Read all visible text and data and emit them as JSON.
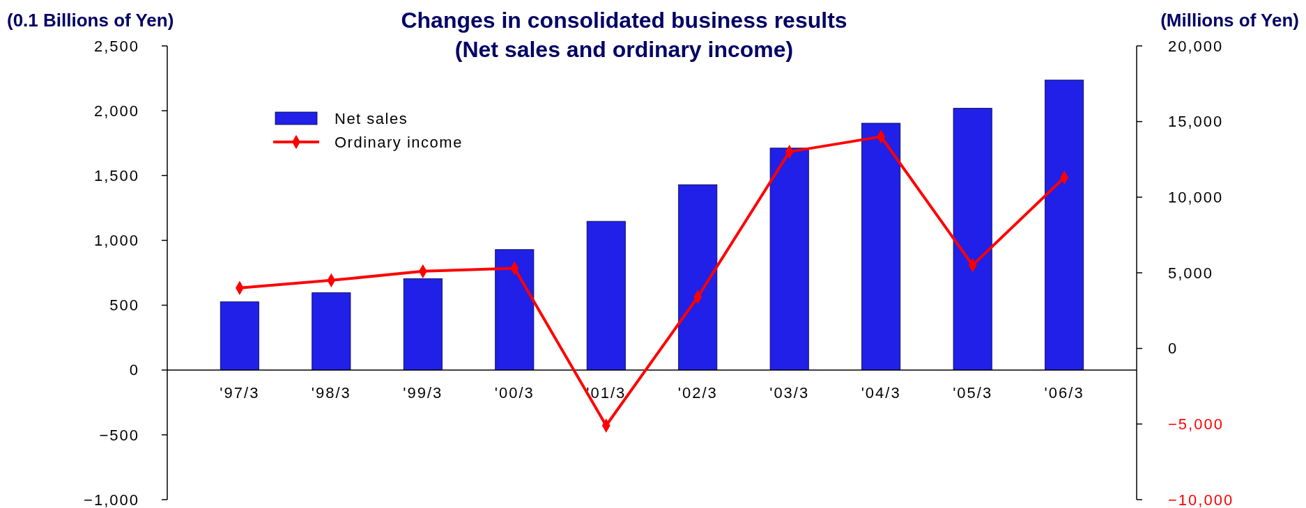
{
  "chart_data": {
    "type": "bar",
    "title": "Changes in consolidated business results\n(Net sales and ordinary income)",
    "ylabel": "(0.1 Billions of Yen)",
    "y2label": "(Millions of Yen)",
    "categories": [
      "'97/3",
      "'98/3",
      "'99/3",
      "'00/3",
      "'01/3",
      "'02/3",
      "'03/3",
      "'04/3",
      "'05/3",
      "'06/3"
    ],
    "series": [
      {
        "name": "Net sales",
        "color": "#2020e8",
        "values": [
          526,
          596,
          705,
          929,
          1147,
          1429,
          1712,
          1904,
          2019,
          2237
        ]
      },
      {
        "name": "Ordinary income",
        "type": "line",
        "axis": "y2",
        "color": "#ff0000",
        "marker": "diamond",
        "values": [
          4000,
          4500,
          5100,
          5300,
          -5100,
          3400,
          13000,
          14000,
          5500,
          11300
        ]
      }
    ],
    "ylim": [
      -1000,
      2500
    ],
    "yticks": [
      {
        "value": -1000,
        "label": "−1,000"
      },
      {
        "value": -500,
        "label": "−500"
      },
      0,
      {
        "value": 500,
        "label": "500"
      },
      {
        "value": 1000,
        "label": "1,000"
      },
      {
        "value": 1500,
        "label": "1,500"
      },
      {
        "value": 2000,
        "label": "2,000"
      },
      {
        "value": 2500,
        "label": "2,500"
      }
    ],
    "y2lim": [
      -10000,
      20000
    ],
    "y2ticks": [
      {
        "value": -10000,
        "label": "−10,000"
      },
      {
        "value": -5000,
        "label": "−5,000"
      },
      0,
      {
        "value": 5000,
        "label": "5,000"
      },
      {
        "value": 10000,
        "label": "10,000"
      },
      {
        "value": 15000,
        "label": "15,000"
      },
      {
        "value": 20000,
        "label": "20,000"
      }
    ],
    "legend": "top left",
    "grid": false
  }
}
